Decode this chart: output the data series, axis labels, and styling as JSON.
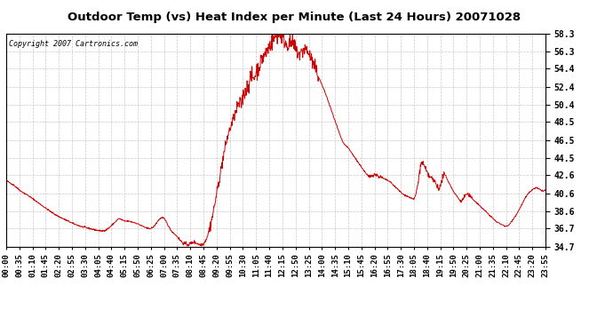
{
  "title": "Outdoor Temp (vs) Heat Index per Minute (Last 24 Hours) 20071028",
  "copyright": "Copyright 2007 Cartronics.com",
  "line_color": "#cc0000",
  "bg_color": "#ffffff",
  "plot_bg_color": "#ffffff",
  "grid_color": "#bbbbbb",
  "yticks": [
    34.7,
    36.7,
    38.6,
    40.6,
    42.6,
    44.5,
    46.5,
    48.5,
    50.4,
    52.4,
    54.4,
    56.3,
    58.3
  ],
  "ymin": 34.7,
  "ymax": 58.3,
  "xtick_labels": [
    "00:00",
    "00:35",
    "01:10",
    "01:45",
    "02:20",
    "02:55",
    "03:30",
    "04:05",
    "04:40",
    "05:15",
    "05:50",
    "06:25",
    "07:00",
    "07:35",
    "08:10",
    "08:45",
    "09:20",
    "09:55",
    "10:30",
    "11:05",
    "11:40",
    "12:15",
    "12:50",
    "13:25",
    "14:00",
    "14:35",
    "15:10",
    "15:45",
    "16:20",
    "16:55",
    "17:30",
    "18:05",
    "18:40",
    "19:15",
    "19:50",
    "20:25",
    "21:00",
    "21:35",
    "22:10",
    "22:45",
    "23:20",
    "23:55"
  ],
  "control_points": [
    [
      0,
      42.0
    ],
    [
      20,
      41.5
    ],
    [
      40,
      40.8
    ],
    [
      60,
      40.3
    ],
    [
      80,
      39.7
    ],
    [
      100,
      39.1
    ],
    [
      120,
      38.5
    ],
    [
      140,
      38.0
    ],
    [
      160,
      37.6
    ],
    [
      180,
      37.2
    ],
    [
      200,
      36.9
    ],
    [
      220,
      36.7
    ],
    [
      240,
      36.5
    ],
    [
      255,
      36.4
    ],
    [
      265,
      36.5
    ],
    [
      275,
      36.8
    ],
    [
      285,
      37.2
    ],
    [
      295,
      37.6
    ],
    [
      300,
      37.8
    ],
    [
      305,
      37.7
    ],
    [
      310,
      37.6
    ],
    [
      315,
      37.5
    ],
    [
      325,
      37.5
    ],
    [
      335,
      37.4
    ],
    [
      345,
      37.3
    ],
    [
      355,
      37.1
    ],
    [
      365,
      36.9
    ],
    [
      375,
      36.7
    ],
    [
      385,
      36.7
    ],
    [
      390,
      36.8
    ],
    [
      395,
      37.0
    ],
    [
      400,
      37.3
    ],
    [
      405,
      37.6
    ],
    [
      410,
      37.8
    ],
    [
      415,
      37.9
    ],
    [
      420,
      37.8
    ],
    [
      425,
      37.5
    ],
    [
      430,
      37.1
    ],
    [
      435,
      36.7
    ],
    [
      440,
      36.4
    ],
    [
      445,
      36.2
    ],
    [
      450,
      36.0
    ],
    [
      455,
      35.8
    ],
    [
      460,
      35.5
    ],
    [
      465,
      35.3
    ],
    [
      470,
      35.1
    ],
    [
      475,
      35.0
    ],
    [
      480,
      34.9
    ],
    [
      485,
      34.9
    ],
    [
      490,
      35.0
    ],
    [
      495,
      35.1
    ],
    [
      500,
      35.2
    ],
    [
      505,
      35.1
    ],
    [
      510,
      35.0
    ],
    [
      515,
      34.9
    ],
    [
      520,
      34.9
    ],
    [
      525,
      35.0
    ],
    [
      530,
      35.3
    ],
    [
      535,
      35.8
    ],
    [
      540,
      36.5
    ],
    [
      545,
      37.3
    ],
    [
      550,
      38.3
    ],
    [
      555,
      39.4
    ],
    [
      560,
      40.5
    ],
    [
      565,
      41.7
    ],
    [
      570,
      42.8
    ],
    [
      575,
      44.0
    ],
    [
      580,
      45.1
    ],
    [
      585,
      46.1
    ],
    [
      590,
      47.0
    ],
    [
      593,
      47.4
    ],
    [
      596,
      47.8
    ],
    [
      599,
      48.1
    ],
    [
      602,
      48.5
    ],
    [
      605,
      48.8
    ],
    [
      608,
      49.2
    ],
    [
      611,
      49.5
    ],
    [
      614,
      50.0
    ],
    [
      617,
      50.4
    ],
    [
      620,
      50.5
    ],
    [
      623,
      50.3
    ],
    [
      626,
      50.5
    ],
    [
      629,
      51.0
    ],
    [
      632,
      51.5
    ],
    [
      635,
      51.8
    ],
    [
      638,
      52.0
    ],
    [
      641,
      52.3
    ],
    [
      644,
      52.6
    ],
    [
      647,
      53.0
    ],
    [
      650,
      53.3
    ],
    [
      653,
      53.5
    ],
    [
      656,
      53.4
    ],
    [
      659,
      53.3
    ],
    [
      662,
      53.6
    ],
    [
      665,
      54.0
    ],
    [
      668,
      54.3
    ],
    [
      671,
      54.5
    ],
    [
      674,
      54.8
    ],
    [
      677,
      55.1
    ],
    [
      680,
      55.4
    ],
    [
      683,
      55.6
    ],
    [
      686,
      55.8
    ],
    [
      689,
      56.0
    ],
    [
      692,
      56.2
    ],
    [
      695,
      56.5
    ],
    [
      698,
      56.7
    ],
    [
      701,
      56.9
    ],
    [
      704,
      57.1
    ],
    [
      707,
      57.3
    ],
    [
      710,
      57.5
    ],
    [
      713,
      57.7
    ],
    [
      716,
      57.9
    ],
    [
      719,
      58.1
    ],
    [
      722,
      57.8
    ],
    [
      725,
      58.0
    ],
    [
      728,
      58.2
    ],
    [
      731,
      58.1
    ],
    [
      734,
      57.9
    ],
    [
      737,
      57.7
    ],
    [
      740,
      57.5
    ],
    [
      743,
      57.3
    ],
    [
      746,
      57.1
    ],
    [
      749,
      57.0
    ],
    [
      752,
      57.2
    ],
    [
      755,
      57.3
    ],
    [
      758,
      57.2
    ],
    [
      761,
      57.1
    ],
    [
      764,
      57.0
    ],
    [
      767,
      56.8
    ],
    [
      770,
      56.6
    ],
    [
      773,
      56.4
    ],
    [
      776,
      56.2
    ],
    [
      779,
      56.0
    ],
    [
      782,
      55.9
    ],
    [
      785,
      56.1
    ],
    [
      788,
      56.3
    ],
    [
      791,
      56.5
    ],
    [
      794,
      56.6
    ],
    [
      797,
      56.5
    ],
    [
      800,
      56.4
    ],
    [
      803,
      56.2
    ],
    [
      806,
      56.0
    ],
    [
      809,
      55.7
    ],
    [
      812,
      55.4
    ],
    [
      815,
      55.1
    ],
    [
      818,
      54.8
    ],
    [
      821,
      54.5
    ],
    [
      824,
      54.2
    ],
    [
      827,
      53.9
    ],
    [
      830,
      53.6
    ],
    [
      835,
      53.1
    ],
    [
      840,
      52.6
    ],
    [
      845,
      52.1
    ],
    [
      850,
      51.6
    ],
    [
      855,
      51.0
    ],
    [
      860,
      50.4
    ],
    [
      865,
      49.8
    ],
    [
      870,
      49.2
    ],
    [
      875,
      48.6
    ],
    [
      880,
      48.0
    ],
    [
      885,
      47.4
    ],
    [
      890,
      46.8
    ],
    [
      895,
      46.3
    ],
    [
      900,
      46.0
    ],
    [
      905,
      45.8
    ],
    [
      910,
      45.6
    ],
    [
      915,
      45.3
    ],
    [
      920,
      45.0
    ],
    [
      925,
      44.7
    ],
    [
      930,
      44.4
    ],
    [
      935,
      44.1
    ],
    [
      940,
      43.8
    ],
    [
      945,
      43.5
    ],
    [
      950,
      43.2
    ],
    [
      955,
      42.9
    ],
    [
      960,
      42.6
    ],
    [
      965,
      42.4
    ],
    [
      970,
      42.5
    ],
    [
      975,
      42.6
    ],
    [
      980,
      42.7
    ],
    [
      985,
      42.6
    ],
    [
      990,
      42.5
    ],
    [
      995,
      42.4
    ],
    [
      1000,
      42.3
    ],
    [
      1005,
      42.2
    ],
    [
      1010,
      42.1
    ],
    [
      1015,
      42.0
    ],
    [
      1020,
      41.9
    ],
    [
      1025,
      41.7
    ],
    [
      1030,
      41.5
    ],
    [
      1035,
      41.3
    ],
    [
      1040,
      41.1
    ],
    [
      1045,
      40.9
    ],
    [
      1050,
      40.7
    ],
    [
      1055,
      40.5
    ],
    [
      1060,
      40.4
    ],
    [
      1065,
      40.3
    ],
    [
      1070,
      40.2
    ],
    [
      1075,
      40.1
    ],
    [
      1080,
      40.0
    ],
    [
      1085,
      39.9
    ],
    [
      1090,
      40.5
    ],
    [
      1095,
      41.5
    ],
    [
      1100,
      43.0
    ],
    [
      1105,
      44.0
    ],
    [
      1110,
      43.8
    ],
    [
      1115,
      43.3
    ],
    [
      1120,
      42.8
    ],
    [
      1125,
      42.5
    ],
    [
      1130,
      42.3
    ],
    [
      1135,
      42.1
    ],
    [
      1140,
      41.9
    ],
    [
      1145,
      41.5
    ],
    [
      1150,
      41.2
    ],
    [
      1155,
      41.3
    ],
    [
      1158,
      41.8
    ],
    [
      1162,
      42.5
    ],
    [
      1165,
      42.6
    ],
    [
      1170,
      42.4
    ],
    [
      1175,
      42.0
    ],
    [
      1180,
      41.6
    ],
    [
      1185,
      41.2
    ],
    [
      1190,
      40.8
    ],
    [
      1195,
      40.5
    ],
    [
      1200,
      40.2
    ],
    [
      1205,
      39.9
    ],
    [
      1210,
      39.7
    ],
    [
      1215,
      39.9
    ],
    [
      1220,
      40.3
    ],
    [
      1225,
      40.5
    ],
    [
      1230,
      40.4
    ],
    [
      1235,
      40.2
    ],
    [
      1240,
      40.0
    ],
    [
      1245,
      39.8
    ],
    [
      1250,
      39.6
    ],
    [
      1255,
      39.4
    ],
    [
      1260,
      39.2
    ],
    [
      1265,
      39.0
    ],
    [
      1270,
      38.8
    ],
    [
      1275,
      38.6
    ],
    [
      1280,
      38.4
    ],
    [
      1285,
      38.2
    ],
    [
      1290,
      38.0
    ],
    [
      1295,
      37.8
    ],
    [
      1300,
      37.6
    ],
    [
      1305,
      37.4
    ],
    [
      1310,
      37.3
    ],
    [
      1315,
      37.2
    ],
    [
      1320,
      37.1
    ],
    [
      1325,
      37.0
    ],
    [
      1330,
      36.9
    ],
    [
      1335,
      37.0
    ],
    [
      1340,
      37.2
    ],
    [
      1345,
      37.5
    ],
    [
      1350,
      37.8
    ],
    [
      1355,
      38.1
    ],
    [
      1360,
      38.4
    ],
    [
      1365,
      38.8
    ],
    [
      1370,
      39.2
    ],
    [
      1375,
      39.6
    ],
    [
      1380,
      40.0
    ],
    [
      1385,
      40.3
    ],
    [
      1390,
      40.6
    ],
    [
      1395,
      40.8
    ],
    [
      1400,
      41.0
    ],
    [
      1405,
      41.1
    ],
    [
      1410,
      41.2
    ],
    [
      1415,
      41.1
    ],
    [
      1420,
      41.0
    ],
    [
      1425,
      40.9
    ],
    [
      1430,
      40.8
    ],
    [
      1435,
      41.0
    ]
  ]
}
